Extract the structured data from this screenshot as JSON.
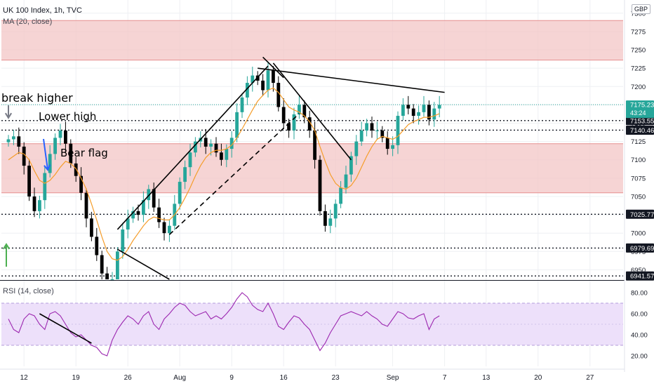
{
  "header": {
    "symbol_line": "UK 100 Index, 1h, TVC",
    "ma_label": "MA (20, close)",
    "rsi_label": "RSI (14, close)",
    "currency": "GBP"
  },
  "annotations": {
    "break_higher": "break higher",
    "lower_high": "Lower high",
    "bear_flag": "Bear flag"
  },
  "colors": {
    "candle_up": "#26a69a",
    "candle_down": "#000000",
    "ma_line": "#f59d2a",
    "zone_fill": "#f3c6c6",
    "zone_border": "#e58f8f",
    "rsi_line": "#9c27b0",
    "rsi_band": "#ede0fa",
    "price_label_bg": "#131722",
    "last_price_bg": "#26a69a",
    "arrow_up": "#4caf50",
    "arrow_down_blue": "#2962ff",
    "arrow_down_grey": "#787b86"
  },
  "chart_data": {
    "type": "candlestick",
    "title": "UK 100 Index, 1h, TVC",
    "price_axis": {
      "ticks": [
        7300,
        7275,
        7250,
        7225,
        7200,
        7175,
        7150,
        7125,
        7100,
        7075,
        7050,
        7025,
        7000,
        6975,
        6950
      ],
      "ylim": [
        6937,
        7318
      ]
    },
    "rsi_axis": {
      "ticks": [
        80,
        60,
        40,
        20
      ],
      "ylim": [
        10,
        90
      ],
      "bands": [
        30,
        70
      ]
    },
    "time_axis": {
      "labels": [
        "12",
        "19",
        "26",
        "Aug",
        "9",
        "16",
        "23",
        "Sep",
        "7",
        "13",
        "20",
        "27"
      ],
      "index": [
        3,
        13,
        23,
        33,
        43,
        53,
        63,
        74,
        84,
        92,
        102,
        112
      ]
    },
    "last_price": {
      "value": "7175.23",
      "countdown": "43:24"
    },
    "price_labels": [
      "7153.55",
      "7140.46",
      "7025.77",
      "6979.69",
      "6941.57"
    ],
    "horizontal_levels": [
      7153.55,
      7140.46,
      7025.77,
      6979.69,
      6941.57
    ],
    "zones": [
      {
        "from": 7236,
        "to": 7290
      },
      {
        "from": 7055,
        "to": 7122
      }
    ],
    "price_series": [
      7128,
      7132,
      7118,
      7092,
      7050,
      7030,
      7045,
      7082,
      7108,
      7130,
      7140,
      7122,
      7095,
      7078,
      7055,
      7020,
      6995,
      6970,
      6945,
      6925,
      6935,
      6975,
      7005,
      7020,
      7030,
      7025,
      7045,
      7060,
      7035,
      7015,
      7000,
      7010,
      7040,
      7070,
      7090,
      7110,
      7125,
      7130,
      7118,
      7122,
      7110,
      7100,
      7115,
      7130,
      7165,
      7185,
      7205,
      7215,
      7208,
      7195,
      7222,
      7205,
      7172,
      7150,
      7140,
      7162,
      7175,
      7158,
      7140,
      7100,
      7030,
      7010,
      7020,
      7040,
      7062,
      7080,
      7105,
      7125,
      7140,
      7150,
      7140,
      7140,
      7130,
      7115,
      7120,
      7160,
      7175,
      7170,
      7160,
      7165,
      7175,
      7155,
      7170,
      7175
    ],
    "ma_series": [
      7100,
      7105,
      7110,
      7108,
      7100,
      7085,
      7072,
      7068,
      7072,
      7080,
      7090,
      7098,
      7095,
      7088,
      7075,
      7060,
      7040,
      7018,
      6995,
      6975,
      6965,
      6963,
      6968,
      6978,
      6990,
      7000,
      7010,
      7018,
      7022,
      7020,
      7018,
      7018,
      7025,
      7035,
      7048,
      7062,
      7078,
      7092,
      7103,
      7110,
      7113,
      7113,
      7115,
      7120,
      7130,
      7142,
      7155,
      7168,
      7180,
      7188,
      7195,
      7198,
      7192,
      7182,
      7172,
      7168,
      7165,
      7160,
      7152,
      7140,
      7118,
      7098,
      7080,
      7068,
      7062,
      7060,
      7065,
      7075,
      7090,
      7105,
      7118,
      7128,
      7132,
      7130,
      7128,
      7132,
      7140,
      7148,
      7152,
      7155,
      7158,
      7158,
      7160,
      7163
    ],
    "rsi_series": [
      55,
      45,
      42,
      55,
      60,
      58,
      50,
      45,
      60,
      62,
      58,
      50,
      42,
      38,
      40,
      35,
      30,
      28,
      22,
      20,
      35,
      45,
      52,
      58,
      55,
      50,
      58,
      62,
      50,
      45,
      55,
      60,
      66,
      70,
      68,
      62,
      58,
      60,
      62,
      55,
      58,
      55,
      60,
      66,
      74,
      80,
      76,
      68,
      64,
      62,
      70,
      60,
      48,
      45,
      52,
      58,
      56,
      50,
      45,
      35,
      25,
      32,
      42,
      50,
      58,
      60,
      62,
      60,
      58,
      62,
      58,
      55,
      50,
      48,
      55,
      62,
      60,
      56,
      55,
      58,
      60,
      45,
      55,
      58
    ],
    "trendlines": [
      {
        "from": [
          21,
          7005
        ],
        "to": [
          50,
          7228
        ]
      },
      {
        "from": [
          31,
          6998
        ],
        "to": [
          56,
          7163
        ]
      },
      {
        "from": [
          21,
          6978
        ],
        "to": [
          31,
          6937
        ]
      },
      {
        "from": [
          48,
          7225
        ],
        "to": [
          84,
          7192
        ]
      },
      {
        "from": [
          51,
          7232
        ],
        "to": [
          66,
          7100
        ]
      },
      {
        "from": [
          49,
          7240
        ],
        "to": [
          53,
          7212
        ]
      }
    ],
    "rsi_trendline": {
      "from": [
        6,
        60
      ],
      "to": [
        16,
        32
      ]
    }
  }
}
